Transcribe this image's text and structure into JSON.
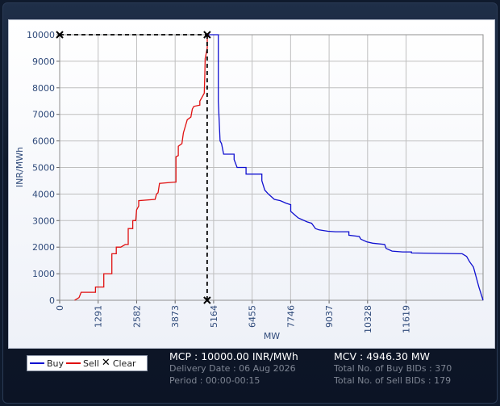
{
  "chart_data": {
    "type": "line",
    "xlabel": "MW",
    "ylabel": "INR/MWh",
    "xlim": [
      0,
      14201
    ],
    "ylim": [
      0,
      10000
    ],
    "x_ticks": [
      0,
      1291,
      2582,
      3873,
      5164,
      6455,
      7746,
      9037,
      10328,
      11619
    ],
    "y_ticks": [
      0,
      1000,
      2000,
      3000,
      4000,
      5000,
      6000,
      7000,
      8000,
      9000,
      10000
    ],
    "grid": true,
    "series": [
      {
        "name": "Buy",
        "color": "#1010d0",
        "points": [
          [
            5000,
            10000
          ],
          [
            5320,
            10000
          ],
          [
            5320,
            7500
          ],
          [
            5380,
            6000
          ],
          [
            5430,
            5900
          ],
          [
            5500,
            5500
          ],
          [
            5850,
            5500
          ],
          [
            5850,
            5300
          ],
          [
            5950,
            5000
          ],
          [
            6250,
            5000
          ],
          [
            6250,
            4750
          ],
          [
            6780,
            4750
          ],
          [
            6780,
            4500
          ],
          [
            6880,
            4150
          ],
          [
            7000,
            4000
          ],
          [
            7200,
            3800
          ],
          [
            7400,
            3750
          ],
          [
            7600,
            3650
          ],
          [
            7750,
            3600
          ],
          [
            7750,
            3350
          ],
          [
            7850,
            3250
          ],
          [
            8000,
            3100
          ],
          [
            8300,
            2950
          ],
          [
            8450,
            2900
          ],
          [
            8580,
            2700
          ],
          [
            8700,
            2650
          ],
          [
            9000,
            2600
          ],
          [
            9250,
            2580
          ],
          [
            9700,
            2580
          ],
          [
            9700,
            2450
          ],
          [
            10050,
            2400
          ],
          [
            10100,
            2300
          ],
          [
            10300,
            2200
          ],
          [
            10500,
            2150
          ],
          [
            10900,
            2100
          ],
          [
            10950,
            1950
          ],
          [
            11150,
            1850
          ],
          [
            11500,
            1820
          ],
          [
            11800,
            1820
          ],
          [
            11800,
            1780
          ],
          [
            13500,
            1750
          ],
          [
            13650,
            1650
          ],
          [
            13750,
            1450
          ],
          [
            13880,
            1250
          ],
          [
            14060,
            500
          ],
          [
            14201,
            0
          ]
        ]
      },
      {
        "name": "Sell",
        "color": "#e01010",
        "points": [
          [
            500,
            0
          ],
          [
            650,
            100
          ],
          [
            720,
            300
          ],
          [
            1200,
            300
          ],
          [
            1200,
            500
          ],
          [
            1480,
            500
          ],
          [
            1480,
            1000
          ],
          [
            1750,
            1000
          ],
          [
            1750,
            1750
          ],
          [
            1900,
            1750
          ],
          [
            1900,
            2000
          ],
          [
            2050,
            2000
          ],
          [
            2200,
            2100
          ],
          [
            2300,
            2100
          ],
          [
            2300,
            2700
          ],
          [
            2450,
            2700
          ],
          [
            2450,
            3000
          ],
          [
            2550,
            3000
          ],
          [
            2580,
            3400
          ],
          [
            2650,
            3550
          ],
          [
            2650,
            3750
          ],
          [
            3200,
            3800
          ],
          [
            3250,
            4000
          ],
          [
            3300,
            4050
          ],
          [
            3350,
            4400
          ],
          [
            3850,
            4450
          ],
          [
            3900,
            4450
          ],
          [
            3900,
            5400
          ],
          [
            3980,
            5450
          ],
          [
            3980,
            5800
          ],
          [
            4100,
            5900
          ],
          [
            4150,
            6300
          ],
          [
            4280,
            6800
          ],
          [
            4400,
            6900
          ],
          [
            4450,
            7200
          ],
          [
            4500,
            7300
          ],
          [
            4700,
            7350
          ],
          [
            4700,
            7500
          ],
          [
            4850,
            7800
          ],
          [
            4870,
            8500
          ],
          [
            4880,
            9100
          ],
          [
            4950,
            9500
          ],
          [
            4950,
            10000
          ],
          [
            5000,
            10000
          ]
        ]
      }
    ],
    "clear_point": [
      4946.3,
      10000
    ],
    "legend": [
      "Buy",
      "Sell",
      "Clear"
    ],
    "legend_position": "bottom-left"
  },
  "legend": {
    "buy": "Buy",
    "sell": "Sell",
    "clear": "Clear"
  },
  "info": {
    "mcp": "MCP : 10000.00 INR/MWh",
    "delivery_date": "Delivery Date : 06 Aug 2026",
    "period": "Period :  00:00-00:15",
    "mcv": "MCV : 4946.30 MW",
    "buy_bids": "Total No. of Buy BIDs : 370",
    "sell_bids": "Total No. of Sell BIDs : 179"
  },
  "colors": {
    "buy": "#1010d0",
    "sell": "#e01010",
    "clear": "#000000",
    "axis_text": "#2f4a7a"
  }
}
